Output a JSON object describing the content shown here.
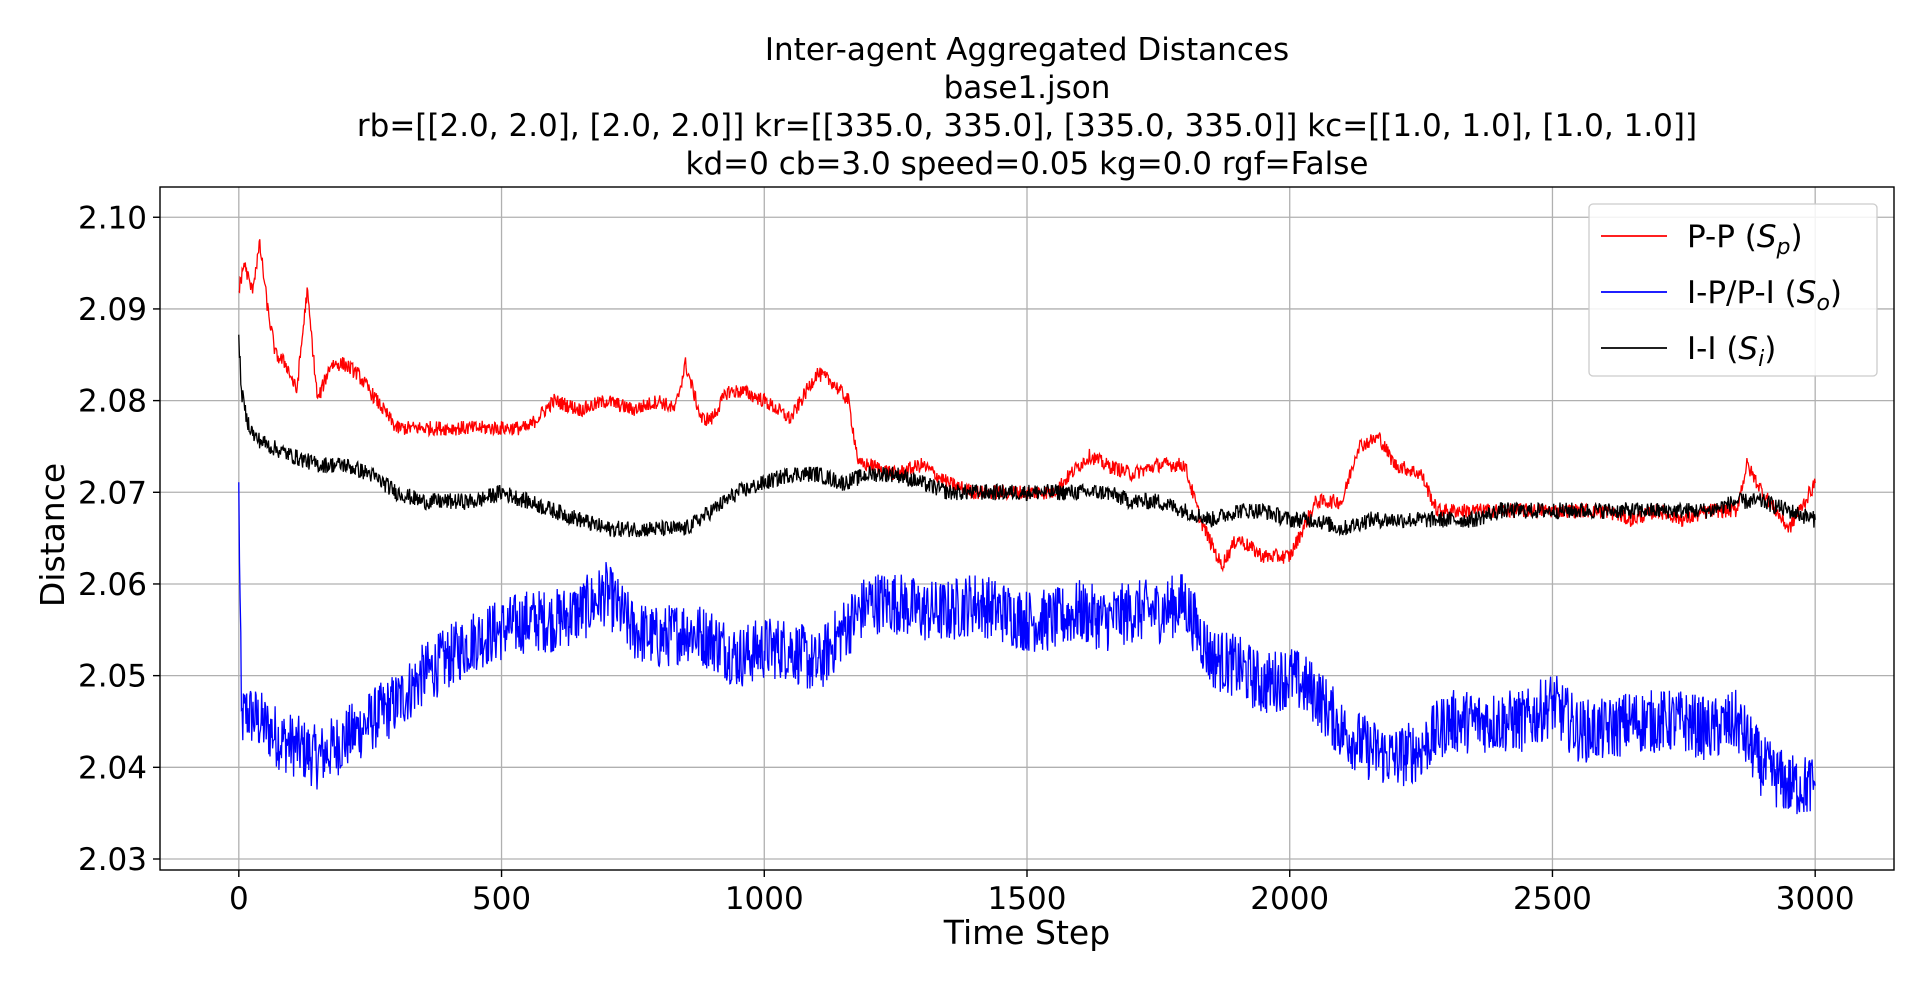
{
  "chart_data": {
    "type": "line",
    "title_lines": [
      "Inter-agent Aggregated Distances",
      "base1.json",
      "rb=[[2.0, 2.0], [2.0, 2.0]] kr=[[335.0, 335.0], [335.0, 335.0]] kc=[[1.0, 1.0], [1.0, 1.0]]",
      "kd=0 cb=3.0 speed=0.05 kg=0.0 rgf=False"
    ],
    "xlabel": "Time Step",
    "ylabel": "Distance",
    "xlim": [
      -150,
      3150
    ],
    "ylim": [
      2.0288,
      2.1033
    ],
    "xticks": [
      0,
      500,
      1000,
      1500,
      2000,
      2500,
      3000
    ],
    "xtick_labels": [
      "0",
      "500",
      "1000",
      "1500",
      "2000",
      "2500",
      "3000"
    ],
    "yticks": [
      2.03,
      2.04,
      2.05,
      2.06,
      2.07,
      2.08,
      2.09,
      2.1
    ],
    "ytick_labels": [
      "2.03",
      "2.04",
      "2.05",
      "2.06",
      "2.07",
      "2.08",
      "2.09",
      "2.10"
    ],
    "grid": true,
    "legend_position": "top-right",
    "series": [
      {
        "name": "P-P (Sp)",
        "label_text": "P-P (",
        "label_math": "S",
        "label_sub": "p",
        "color": "#ff0000",
        "jitter": 0.0008,
        "x": [
          0,
          10,
          25,
          40,
          55,
          70,
          90,
          110,
          130,
          150,
          175,
          200,
          225,
          250,
          275,
          300,
          350,
          400,
          450,
          500,
          550,
          600,
          650,
          700,
          750,
          800,
          830,
          850,
          880,
          900,
          930,
          960,
          1000,
          1050,
          1080,
          1100,
          1130,
          1160,
          1180,
          1200,
          1250,
          1300,
          1350,
          1400,
          1450,
          1500,
          1550,
          1600,
          1620,
          1650,
          1700,
          1750,
          1800,
          1830,
          1870,
          1900,
          1950,
          2000,
          2050,
          2100,
          2130,
          2170,
          2200,
          2250,
          2280,
          2300,
          2350,
          2400,
          2450,
          2500,
          2550,
          2600,
          2650,
          2700,
          2750,
          2800,
          2850,
          2870,
          2900,
          2950,
          3000
        ],
        "y": [
          2.092,
          2.095,
          2.092,
          2.097,
          2.09,
          2.085,
          2.084,
          2.081,
          2.092,
          2.08,
          2.084,
          2.084,
          2.083,
          2.081,
          2.079,
          2.077,
          2.077,
          2.077,
          2.077,
          2.077,
          2.077,
          2.08,
          2.079,
          2.08,
          2.079,
          2.08,
          2.079,
          2.084,
          2.078,
          2.078,
          2.081,
          2.081,
          2.08,
          2.078,
          2.081,
          2.083,
          2.082,
          2.08,
          2.073,
          2.073,
          2.072,
          2.073,
          2.071,
          2.07,
          2.07,
          2.07,
          2.07,
          2.073,
          2.074,
          2.073,
          2.072,
          2.073,
          2.073,
          2.067,
          2.062,
          2.065,
          2.063,
          2.063,
          2.069,
          2.069,
          2.075,
          2.076,
          2.073,
          2.072,
          2.068,
          2.068,
          2.068,
          2.068,
          2.068,
          2.068,
          2.068,
          2.068,
          2.067,
          2.068,
          2.067,
          2.068,
          2.068,
          2.073,
          2.07,
          2.066,
          2.071
        ]
      },
      {
        "name": "I-P/P-I (So)",
        "label_text": "I-P/P-I (",
        "label_math": "S",
        "label_sub": "o",
        "color": "#0000ff",
        "jitter": 0.0035,
        "x": [
          0,
          5,
          15,
          40,
          80,
          120,
          150,
          200,
          250,
          300,
          350,
          400,
          450,
          500,
          550,
          600,
          650,
          700,
          750,
          800,
          850,
          900,
          950,
          1000,
          1050,
          1100,
          1150,
          1200,
          1250,
          1300,
          1350,
          1400,
          1450,
          1500,
          1550,
          1600,
          1650,
          1700,
          1750,
          1800,
          1850,
          1900,
          1950,
          2000,
          2050,
          2100,
          2150,
          2200,
          2250,
          2300,
          2350,
          2400,
          2450,
          2500,
          2550,
          2600,
          2650,
          2700,
          2750,
          2800,
          2850,
          2900,
          2950,
          3000
        ],
        "y": [
          2.07,
          2.045,
          2.046,
          2.045,
          2.043,
          2.042,
          2.041,
          2.043,
          2.045,
          2.047,
          2.05,
          2.052,
          2.054,
          2.055,
          2.056,
          2.056,
          2.057,
          2.059,
          2.055,
          2.054,
          2.055,
          2.054,
          2.052,
          2.053,
          2.053,
          2.051,
          2.055,
          2.058,
          2.058,
          2.057,
          2.057,
          2.058,
          2.057,
          2.056,
          2.056,
          2.057,
          2.056,
          2.057,
          2.057,
          2.058,
          2.052,
          2.051,
          2.049,
          2.05,
          2.048,
          2.044,
          2.042,
          2.041,
          2.042,
          2.045,
          2.045,
          2.045,
          2.045,
          2.047,
          2.044,
          2.044,
          2.045,
          2.045,
          2.045,
          2.044,
          2.045,
          2.04,
          2.038,
          2.038
        ]
      },
      {
        "name": "I-I (Si)",
        "label_text": "I-I (",
        "label_math": "S",
        "label_sub": "i",
        "color": "#000000",
        "jitter": 0.0009,
        "x": [
          0,
          5,
          15,
          30,
          60,
          100,
          150,
          200,
          250,
          300,
          350,
          400,
          450,
          500,
          550,
          600,
          650,
          700,
          750,
          800,
          850,
          900,
          950,
          1000,
          1050,
          1100,
          1150,
          1200,
          1250,
          1300,
          1350,
          1400,
          1450,
          1500,
          1550,
          1600,
          1650,
          1700,
          1750,
          1800,
          1850,
          1900,
          1950,
          2000,
          2050,
          2100,
          2150,
          2200,
          2250,
          2300,
          2350,
          2400,
          2450,
          2500,
          2550,
          2600,
          2650,
          2700,
          2750,
          2800,
          2850,
          2900,
          2950,
          3000
        ],
        "y": [
          2.087,
          2.081,
          2.078,
          2.076,
          2.075,
          2.074,
          2.073,
          2.073,
          2.072,
          2.07,
          2.069,
          2.069,
          2.069,
          2.07,
          2.069,
          2.068,
          2.067,
          2.066,
          2.066,
          2.066,
          2.066,
          2.068,
          2.07,
          2.071,
          2.072,
          2.072,
          2.071,
          2.072,
          2.072,
          2.071,
          2.07,
          2.07,
          2.07,
          2.07,
          2.07,
          2.07,
          2.07,
          2.069,
          2.069,
          2.068,
          2.067,
          2.068,
          2.068,
          2.067,
          2.067,
          2.066,
          2.067,
          2.067,
          2.067,
          2.067,
          2.067,
          2.068,
          2.068,
          2.068,
          2.068,
          2.068,
          2.068,
          2.068,
          2.068,
          2.068,
          2.069,
          2.069,
          2.068,
          2.067
        ]
      }
    ]
  }
}
